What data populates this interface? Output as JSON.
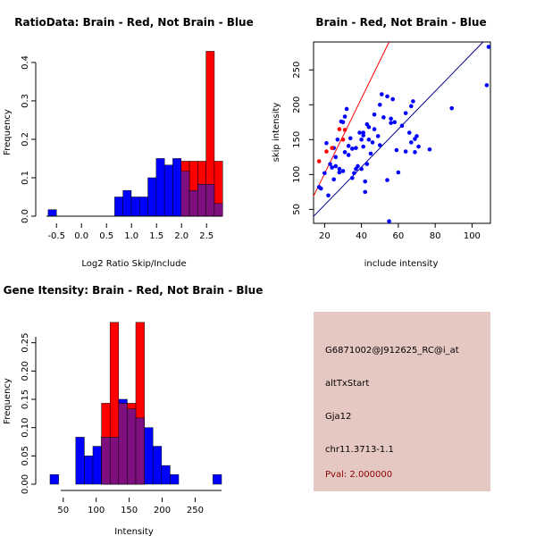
{
  "chart_data": [
    {
      "type": "histogram",
      "title": "RatioData: Brain - Red, Not Brain - Blue",
      "xlabel": "Log2 Ratio Skip/Include",
      "ylabel": "Frequency",
      "xticks": [
        "-0.5",
        "0.0",
        "0.5",
        "1.0",
        "1.5",
        "2.0",
        "2.5"
      ],
      "yticks": [
        "0.0",
        "0.1",
        "0.2",
        "0.3",
        "0.4"
      ],
      "xlim": [
        -0.7,
        2.8
      ],
      "ylim": [
        0,
        0.43
      ],
      "bin_width": 0.166,
      "series": [
        {
          "name": "Not Brain",
          "color": "#0000ff",
          "bins": [
            [
              -0.666,
              0.017
            ],
            [
              0.664,
              0.05
            ],
            [
              0.83,
              0.067
            ],
            [
              0.996,
              0.05
            ],
            [
              1.162,
              0.05
            ],
            [
              1.328,
              0.1
            ],
            [
              1.494,
              0.15
            ],
            [
              1.66,
              0.133
            ],
            [
              1.826,
              0.15
            ],
            [
              1.992,
              0.117
            ],
            [
              2.158,
              0.067
            ],
            [
              2.324,
              0.083
            ],
            [
              2.49,
              0.083
            ],
            [
              2.656,
              0.033
            ]
          ]
        },
        {
          "name": "Brain",
          "color": "#ff0000",
          "bins": [
            [
              1.992,
              0.143
            ],
            [
              2.158,
              0.143
            ],
            [
              2.324,
              0.143
            ],
            [
              2.49,
              0.429
            ],
            [
              2.656,
              0.143
            ]
          ]
        }
      ],
      "overlap_color": "#7f0f7f"
    },
    {
      "type": "scatter",
      "title": "Brain - Red, Not Brain - Blue",
      "xlabel": "include intensity",
      "ylabel": "skip intensity",
      "xticks": [
        "20",
        "40",
        "60",
        "80",
        "100"
      ],
      "yticks": [
        "50",
        "100",
        "150",
        "200",
        "250"
      ],
      "xlim": [
        14,
        110
      ],
      "ylim": [
        30,
        290
      ],
      "series": [
        {
          "name": "Not Brain",
          "color": "#0000ff",
          "points": [
            [
              17,
              82
            ],
            [
              18,
              80
            ],
            [
              20,
              102
            ],
            [
              21,
              145
            ],
            [
              22,
              70
            ],
            [
              23,
              115
            ],
            [
              24,
              110
            ],
            [
              25,
              93
            ],
            [
              25,
              138
            ],
            [
              26,
              125
            ],
            [
              26,
              112
            ],
            [
              27,
              150
            ],
            [
              28,
              108
            ],
            [
              28,
              103
            ],
            [
              29,
              176
            ],
            [
              30,
              175
            ],
            [
              30,
              105
            ],
            [
              31,
              183
            ],
            [
              31,
              132
            ],
            [
              32,
              194
            ],
            [
              33,
              128
            ],
            [
              33,
              141
            ],
            [
              34,
              152
            ],
            [
              35,
              137
            ],
            [
              35,
              95
            ],
            [
              36,
              102
            ],
            [
              37,
              108
            ],
            [
              37,
              138
            ],
            [
              38,
              112
            ],
            [
              39,
              160
            ],
            [
              40,
              108
            ],
            [
              40,
              150
            ],
            [
              41,
              140
            ],
            [
              41,
              156
            ],
            [
              41,
              160
            ],
            [
              42,
              90
            ],
            [
              42,
              75
            ],
            [
              43,
              115
            ],
            [
              43,
              172
            ],
            [
              44,
              168
            ],
            [
              44,
              150
            ],
            [
              45,
              130
            ],
            [
              46,
              146
            ],
            [
              47,
              165
            ],
            [
              47,
              186
            ],
            [
              49,
              155
            ],
            [
              50,
              142
            ],
            [
              50,
              200
            ],
            [
              51,
              215
            ],
            [
              52,
              182
            ],
            [
              54,
              92
            ],
            [
              54,
              212
            ],
            [
              56,
              180
            ],
            [
              56,
              174
            ],
            [
              57,
              208
            ],
            [
              58,
              175
            ],
            [
              59,
              135
            ],
            [
              60,
              103
            ],
            [
              62,
              170
            ],
            [
              64,
              188
            ],
            [
              64,
              133
            ],
            [
              66,
              160
            ],
            [
              67,
              146
            ],
            [
              67,
              198
            ],
            [
              68,
              205
            ],
            [
              69,
              132
            ],
            [
              69,
              151
            ],
            [
              70,
              155
            ],
            [
              71,
              140
            ],
            [
              77,
              136
            ],
            [
              89,
              195
            ],
            [
              108,
              228
            ],
            [
              109,
              283
            ],
            [
              55,
              33
            ]
          ]
        },
        {
          "name": "Brain",
          "color": "#ff0000",
          "points": [
            [
              17,
              119
            ],
            [
              21,
              133
            ],
            [
              24,
              138
            ],
            [
              28,
              165
            ],
            [
              30,
              150
            ],
            [
              31,
              164
            ]
          ]
        }
      ],
      "lines": [
        {
          "color": "#ff0000",
          "from": [
            14,
            69
          ],
          "to": [
            55,
            290
          ]
        },
        {
          "color": "#00008b",
          "from": [
            14,
            40
          ],
          "to": [
            106,
            290
          ]
        }
      ]
    },
    {
      "type": "histogram",
      "title": "Gene Itensity: Brain - Red, Not Brain - Blue",
      "xlabel": "Intensity",
      "ylabel": "Frequency",
      "xticks": [
        "50",
        "100",
        "150",
        "200",
        "250"
      ],
      "yticks": [
        "0.00",
        "0.05",
        "0.10",
        "0.15",
        "0.20",
        "0.25"
      ],
      "xlim": [
        30,
        290
      ],
      "ylim": [
        0,
        0.3
      ],
      "bin_width": 13,
      "series": [
        {
          "name": "Not Brain",
          "color": "#0000ff",
          "bins": [
            [
              30,
              0.017
            ],
            [
              69,
              0.083
            ],
            [
              82,
              0.05
            ],
            [
              95,
              0.067
            ],
            [
              108,
              0.083
            ],
            [
              121,
              0.083
            ],
            [
              134,
              0.15
            ],
            [
              147,
              0.133
            ],
            [
              160,
              0.117
            ],
            [
              173,
              0.1
            ],
            [
              186,
              0.067
            ],
            [
              199,
              0.033
            ],
            [
              212,
              0.017
            ],
            [
              277,
              0.017
            ]
          ]
        },
        {
          "name": "Brain",
          "color": "#ff0000",
          "bins": [
            [
              108,
              0.143
            ],
            [
              121,
              0.286
            ],
            [
              134,
              0.143
            ],
            [
              147,
              0.143
            ],
            [
              160,
              0.286
            ]
          ]
        }
      ],
      "overlap_color": "#7f0f7f"
    }
  ],
  "info_panel": {
    "probe_id": "G6871002@J912625_RC@i_at",
    "event_type": "altTxStart",
    "gene": "Gja12",
    "location": "chr11.3713-1.1",
    "pval": "Pval: 2.000000",
    "pval_color": "#8b0000",
    "background": "#e6c8c2"
  }
}
